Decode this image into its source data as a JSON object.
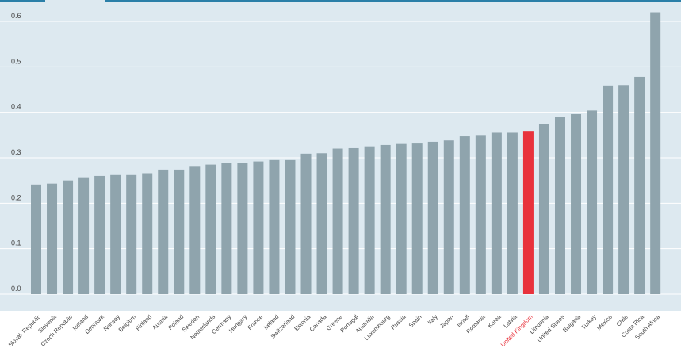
{
  "chart_data": {
    "type": "bar",
    "categories": [
      "Slovak Republic",
      "Slovenia",
      "Czech Republic",
      "Iceland",
      "Denmark",
      "Norway",
      "Belgium",
      "Finland",
      "Austria",
      "Poland",
      "Sweden",
      "Netherlands",
      "Germany",
      "Hungary",
      "France",
      "Ireland",
      "Switzerland",
      "Estonia",
      "Canada",
      "Greece",
      "Portugal",
      "Australia",
      "Luxembourg",
      "Russia",
      "Spain",
      "Italy",
      "Japan",
      "Israel",
      "Romania",
      "Korea",
      "Latvia",
      "United Kingdom",
      "Lithuania",
      "United States",
      "Bulgaria",
      "Turkey",
      "Mexico",
      "Chile",
      "Costa Rica",
      "South Africa"
    ],
    "values": [
      0.241,
      0.243,
      0.25,
      0.257,
      0.26,
      0.262,
      0.262,
      0.266,
      0.274,
      0.274,
      0.282,
      0.285,
      0.289,
      0.289,
      0.292,
      0.295,
      0.295,
      0.309,
      0.31,
      0.32,
      0.321,
      0.325,
      0.328,
      0.332,
      0.333,
      0.335,
      0.338,
      0.347,
      0.35,
      0.355,
      0.355,
      0.359,
      0.375,
      0.39,
      0.396,
      0.404,
      0.459,
      0.46,
      0.478,
      0.62
    ],
    "highlight": "United Kingdom",
    "ylim": [
      0,
      0.6
    ],
    "yticks": [
      "0.0",
      "0.1",
      "0.2",
      "0.3",
      "0.4",
      "0.5",
      "0.6"
    ],
    "grid": true,
    "colors": {
      "bar": "#8fa4ad",
      "highlight_bar": "#e8323c",
      "plot_background": "#dde9f0",
      "grid": "#ffffff",
      "top_rule": "#2a7fa8",
      "highlight_label": "#e8323c"
    }
  }
}
